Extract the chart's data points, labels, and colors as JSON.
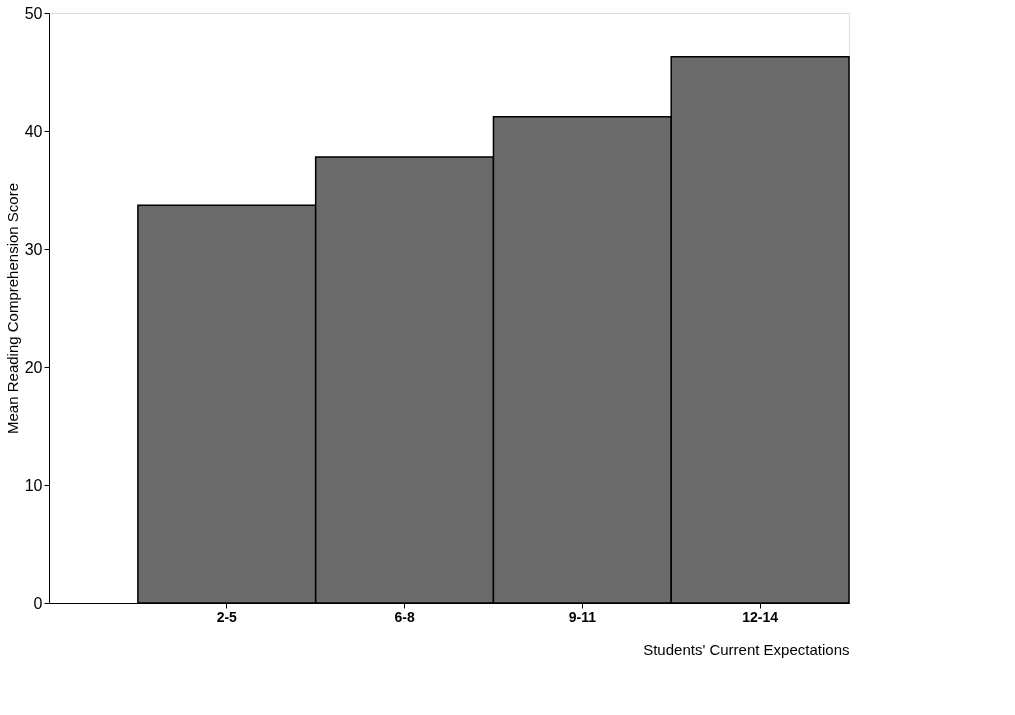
{
  "chart_data": {
    "type": "bar",
    "xlabel": "Students' Current Expectations",
    "ylabel": "Mean Reading Comprehension Score",
    "categories": [
      "2-5",
      "6-8",
      "9-11",
      "12-14"
    ],
    "values": [
      33.7,
      37.8,
      41.2,
      46.3
    ],
    "color": "#6b6b6b",
    "ylim": [
      0,
      50
    ],
    "yticks": [
      0,
      10,
      20,
      30,
      40,
      50
    ],
    "grid": false
  }
}
